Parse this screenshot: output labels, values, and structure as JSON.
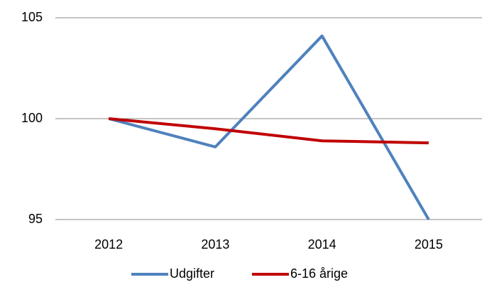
{
  "chart_data": {
    "type": "line",
    "categories": [
      "2012",
      "2013",
      "2014",
      "2015"
    ],
    "series": [
      {
        "name": "Udgifter",
        "color": "#4f81bd",
        "values": [
          100,
          98.6,
          104.1,
          95
        ]
      },
      {
        "name": "6-16 årige",
        "color": "#c00000",
        "values": [
          100,
          99.5,
          98.9,
          98.8
        ]
      }
    ],
    "ylim": [
      95,
      105
    ],
    "yticks": [
      95,
      100,
      105
    ],
    "grid": true,
    "legend": "bottom"
  }
}
